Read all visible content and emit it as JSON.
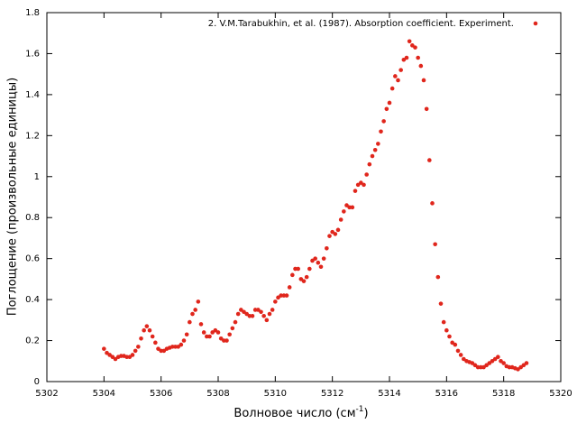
{
  "chart_data": {
    "type": "scatter",
    "x_label": [
      "Волновое число (см",
      "-1",
      ")"
    ],
    "y_label": "Поглощение (произвольные единицы)",
    "xlim": [
      5302,
      5320
    ],
    "xticks": [
      5302,
      5304,
      5306,
      5308,
      5310,
      5312,
      5314,
      5316,
      5318,
      5320
    ],
    "ylim": [
      0,
      1.8
    ],
    "yticks": [
      0,
      0.2,
      0.4,
      0.6,
      0.8,
      1,
      1.2,
      1.4,
      1.6,
      1.8
    ],
    "grid": false,
    "legend": "top-right",
    "x": [
      5304.0,
      5304.1,
      5304.2,
      5304.3,
      5304.4,
      5304.5,
      5304.6,
      5304.7,
      5304.8,
      5304.9,
      5305.0,
      5305.1,
      5305.2,
      5305.3,
      5305.4,
      5305.5,
      5305.6,
      5305.7,
      5305.8,
      5305.9,
      5306.0,
      5306.1,
      5306.2,
      5306.3,
      5306.4,
      5306.5,
      5306.6,
      5306.7,
      5306.8,
      5306.9,
      5307.0,
      5307.1,
      5307.2,
      5307.3,
      5307.4,
      5307.5,
      5307.6,
      5307.7,
      5307.8,
      5307.9,
      5308.0,
      5308.1,
      5308.2,
      5308.3,
      5308.4,
      5308.5,
      5308.6,
      5308.7,
      5308.8,
      5308.9,
      5309.0,
      5309.1,
      5309.2,
      5309.3,
      5309.4,
      5309.5,
      5309.6,
      5309.7,
      5309.8,
      5309.9,
      5310.0,
      5310.1,
      5310.2,
      5310.3,
      5310.4,
      5310.5,
      5310.6,
      5310.7,
      5310.8,
      5310.9,
      5311.0,
      5311.1,
      5311.2,
      5311.3,
      5311.4,
      5311.5,
      5311.6,
      5311.7,
      5311.8,
      5311.9,
      5312.0,
      5312.1,
      5312.2,
      5312.3,
      5312.4,
      5312.5,
      5312.6,
      5312.7,
      5312.8,
      5312.9,
      5313.0,
      5313.1,
      5313.2,
      5313.3,
      5313.4,
      5313.5,
      5313.6,
      5313.7,
      5313.8,
      5313.9,
      5314.0,
      5314.1,
      5314.2,
      5314.3,
      5314.4,
      5314.5,
      5314.6,
      5314.7,
      5314.8,
      5314.9,
      5315.0,
      5315.1,
      5315.2,
      5315.3,
      5315.4,
      5315.5,
      5315.6,
      5315.7,
      5315.8,
      5315.9,
      5316.0,
      5316.1,
      5316.2,
      5316.3,
      5316.4,
      5316.5,
      5316.6,
      5316.7,
      5316.8,
      5316.9,
      5317.0,
      5317.1,
      5317.2,
      5317.3,
      5317.4,
      5317.5,
      5317.6,
      5317.7,
      5317.8,
      5317.9,
      5318.0,
      5318.1,
      5318.2,
      5318.3,
      5318.4,
      5318.5,
      5318.6,
      5318.7,
      5318.8
    ],
    "series": [
      {
        "name": "2. V.M.Tarabukhin, et al. (1987). Absorption coefficient. Experiment.",
        "color": "#e0261c",
        "values": [
          0.16,
          0.14,
          0.13,
          0.12,
          0.11,
          0.12,
          0.125,
          0.125,
          0.12,
          0.12,
          0.13,
          0.15,
          0.17,
          0.21,
          0.25,
          0.27,
          0.25,
          0.22,
          0.19,
          0.16,
          0.15,
          0.15,
          0.16,
          0.165,
          0.17,
          0.17,
          0.17,
          0.18,
          0.2,
          0.23,
          0.29,
          0.33,
          0.35,
          0.39,
          0.28,
          0.24,
          0.22,
          0.22,
          0.24,
          0.25,
          0.24,
          0.21,
          0.2,
          0.2,
          0.23,
          0.26,
          0.29,
          0.33,
          0.35,
          0.34,
          0.33,
          0.32,
          0.32,
          0.35,
          0.35,
          0.34,
          0.32,
          0.3,
          0.33,
          0.35,
          0.39,
          0.41,
          0.42,
          0.42,
          0.42,
          0.46,
          0.52,
          0.55,
          0.55,
          0.5,
          0.49,
          0.51,
          0.55,
          0.59,
          0.6,
          0.58,
          0.56,
          0.6,
          0.65,
          0.71,
          0.73,
          0.72,
          0.74,
          0.79,
          0.83,
          0.86,
          0.85,
          0.85,
          0.93,
          0.96,
          0.97,
          0.96,
          1.01,
          1.06,
          1.1,
          1.13,
          1.16,
          1.22,
          1.27,
          1.33,
          1.36,
          1.43,
          1.49,
          1.47,
          1.52,
          1.57,
          1.58,
          1.66,
          1.64,
          1.63,
          1.58,
          1.54,
          1.47,
          1.33,
          1.08,
          0.87,
          0.67,
          0.51,
          0.38,
          0.29,
          0.25,
          0.22,
          0.19,
          0.18,
          0.15,
          0.13,
          0.11,
          0.1,
          0.095,
          0.09,
          0.08,
          0.07,
          0.07,
          0.07,
          0.08,
          0.09,
          0.1,
          0.11,
          0.12,
          0.1,
          0.09,
          0.075,
          0.07,
          0.07,
          0.065,
          0.06,
          0.07,
          0.08,
          0.09
        ]
      }
    ]
  }
}
